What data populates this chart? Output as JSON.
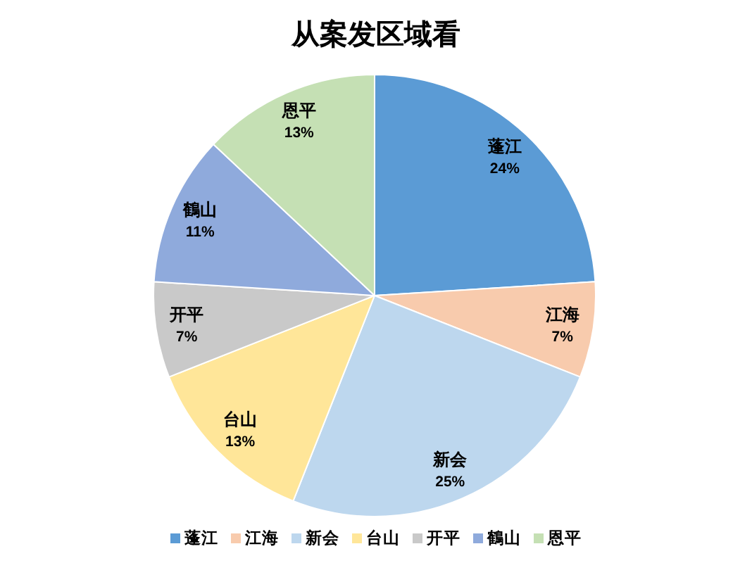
{
  "chart_data": {
    "type": "pie",
    "title": "从案发区域看",
    "categories": [
      "蓬江",
      "江海",
      "新会",
      "台山",
      "开平",
      "鶴山",
      "恩平"
    ],
    "values": [
      24,
      7,
      25,
      13,
      7,
      11,
      13
    ],
    "colors": [
      "#5b9bd5",
      "#f8cbad",
      "#bdd7ee",
      "#ffe699",
      "#c9c9c9",
      "#8faadc",
      "#c5e0b4"
    ],
    "value_labels": [
      "24%",
      "7%",
      "25%",
      "13%",
      "7%",
      "11%",
      "13%"
    ],
    "legend": "bottom"
  }
}
